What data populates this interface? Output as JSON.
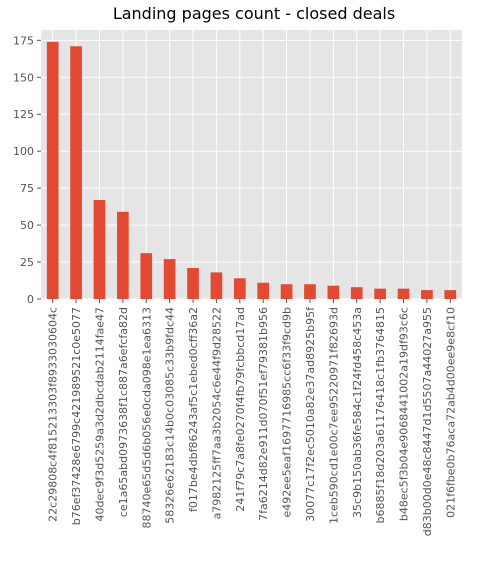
{
  "chart_data": {
    "type": "bar",
    "title": "Landing pages count - closed deals",
    "xlabel": "",
    "ylabel": "",
    "ylim": [
      0,
      182
    ],
    "yticks": [
      0,
      25,
      50,
      75,
      100,
      125,
      150,
      175
    ],
    "grid": true,
    "legend": "none",
    "colors": {
      "bar": "#E24A33",
      "plot_background": "#E5E5E5",
      "grid": "#FFFFFF",
      "tick_label": "#555555",
      "title": "#000000"
    },
    "categories": [
      "22c29808c4f815213303f8933030604c",
      "b76ef37428e6799c421989521c0e5077",
      "40dec9f3d5259a3d2dbcdab2114fae47",
      "ce1a65abd0973638f1c887a6efcfa82d",
      "88740e65d5d6b056e0cda098e1ea6313",
      "58326e62183c14b0c03085c33b9fdc44",
      "f017be4dbf86243af5c1ebed0cff36a2",
      "a7982125ff7aa3b2054c6e44f9d28522",
      "241f79c7a8fe0270f4fb79fcbbcd17ad",
      "7fa6214d82e911d070f51ef79381b956",
      "e492ee5eaf1697716985cc6f33f9cd9b",
      "30077c17f2ec5010a82e37ad8925b95f",
      "1ceb590cd1e00c7ee95220971f82693d",
      "35c9b150ab36fe584c1f24fd458c453a",
      "b6885f18d203a61176418c1fb3764815",
      "b48ec5f3b04e9068441002a19df93c6c",
      "d83b00d0e48c8447d1d5507a44027a955",
      "021f6fbe0b76aca72ab4d00ee9e8cf10"
    ],
    "values": [
      174,
      171,
      67,
      59,
      31,
      27,
      21,
      18,
      14,
      11,
      10,
      10,
      9,
      8,
      7,
      7,
      6,
      6
    ]
  }
}
